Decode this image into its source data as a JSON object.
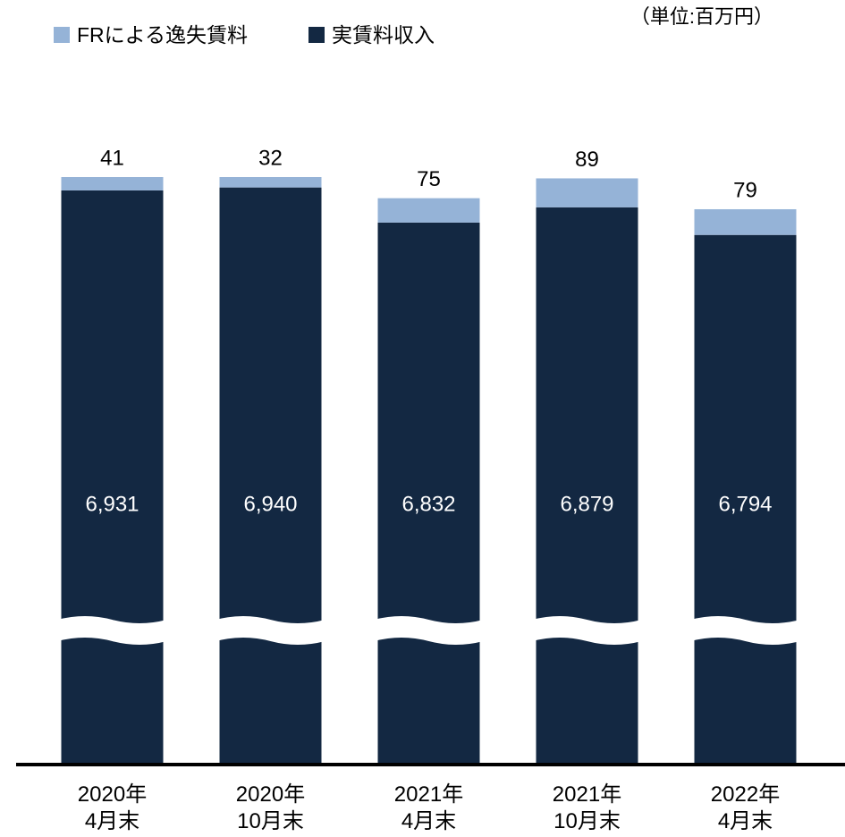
{
  "chart_data": {
    "type": "bar",
    "stacked": true,
    "unit": "（単位:百万円）",
    "categories": [
      "2020年\n4月末",
      "2020年\n10月末",
      "2021年\n4月末",
      "2021年\n10月末",
      "2022年\n4月末"
    ],
    "series": [
      {
        "name": "FRによる逸失賃料",
        "color": "#95b3d7",
        "values": [
          41,
          32,
          75,
          89,
          79
        ]
      },
      {
        "name": "実賃料収入",
        "color": "#132842",
        "values": [
          6931,
          6940,
          6832,
          6879,
          6794
        ],
        "value_labels": [
          "6,931",
          "6,940",
          "6,832",
          "6,879",
          "6,794"
        ]
      }
    ],
    "broken_axis": true,
    "legend": "top-left"
  }
}
